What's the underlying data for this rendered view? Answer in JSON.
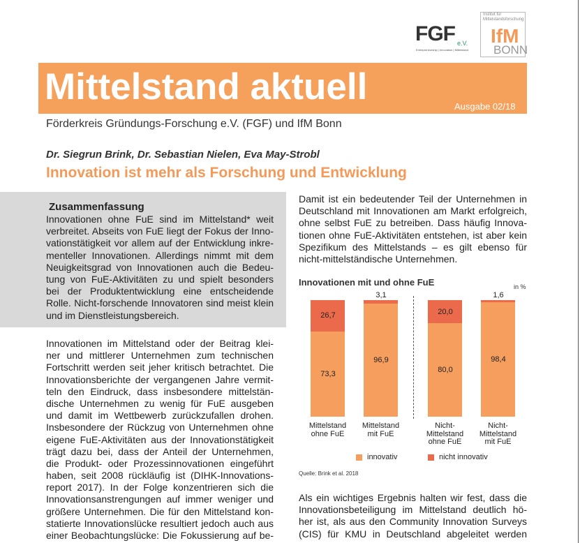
{
  "logos": {
    "fgf": "FGF",
    "fgf_suffix": "e.V.",
    "fgf_tagline": "Entrepreneurship | Innovation | Mittelstand",
    "ifm_institute": "Institut für Mittelstandsforschung",
    "ifm": "IfM",
    "ifm_city": "BONN"
  },
  "header": {
    "title": "Mittelstand aktuell",
    "issue": "Ausgabe 02/18",
    "publisher": "Förderkreis Gründungs-Forschung e.V. (FGF) und IfM Bonn",
    "authors": "Dr. Siegrun Brink, Dr. Sebastian Nielen, Eva May-Strobl",
    "headline": "Innovation ist mehr als Forschung und Entwicklung"
  },
  "summary": {
    "heading": "Zusammenfassung",
    "lines": [
      "Innovationen ohne FuE sind im Mittelstand* weit",
      "verbreitet. Abseits von FuE liegt der Fokus der Inno-",
      "vationstätigkeit vor allem auf der Entwicklung inkre-",
      "menteller Innovationen. Allerdings nimmt mit dem",
      "Neuigkeitsgrad von Innovationen auch die Bedeu-",
      "tung von FuE-Aktivitäten zu und spielt besonders",
      "bei der Produktentwicklung eine entscheidende",
      "Rolle. Nicht-forschende Innovatoren sind meist klein",
      "und im Dienstleistungsbereich."
    ]
  },
  "body_left": {
    "lines": [
      "Innovationen im Mittelstand oder der Beitrag klei-",
      "ner und mittlerer Unternehmen zum technischen",
      "Fortschritt werden seit jeher kritisch betrachtet. Die",
      "Innovationsberichte der vergangenen Jahre vermit-",
      "teln den Eindruck, dass insbesondere mittelstän-",
      "dische Unternehmen zu wenig für FuE ausgeben",
      "und damit im Wettbewerb zurückzufallen drohen.",
      "Insbesondere der Rückzug von Unternehmen ohne",
      "eigene FuE-Aktivitäten aus der Innovationstätigkeit",
      "trägt dazu bei, dass der Anteil der Unternehmen,",
      "die Produkt- oder Prozessinnovationen eingeführt",
      "haben, seit 2008 rückläufig ist (DIHK-Innovations-",
      "report 2017). In der Folge konzentrieren sich die",
      "Innovationsanstrengungen auf immer weniger und",
      "größere Unternehmen. Die für den Mittelstand kon-",
      "statierte Innovationslücke resultiert jedoch auch aus",
      "einer Beobachtungslücke: Die Fokussierung auf be-"
    ]
  },
  "body_right_top": {
    "lines": [
      "Damit ist ein bedeutender Teil der Unternehmen in",
      "Deutschland mit Innovationen am Markt erfolgreich,",
      "ohne selbst FuE zu betreiben. Dass häufig Innova-",
      "tionen ohne FuE-Aktivitäten entstehen, ist aber kein",
      "Spezifikum des Mittelstands – es gilt ebenso für",
      "nicht-mittelständische Unternehmen."
    ]
  },
  "body_right_bottom": {
    "lines": [
      "Als ein wichtiges Ergebnis halten wir fest, dass die",
      "Innovationsbeteiligung im Mittelstand deutlich hö-",
      "her ist, als aus den Community Innovation Surveys",
      "(CIS) für KMU in Deutschland abgeleitet werden"
    ]
  },
  "chart_data": {
    "type": "bar",
    "stacked": true,
    "title": "Innovationen mit und ohne FuE",
    "unit_label": "in %",
    "categories": [
      "Mittelstand\nohne FuE",
      "Mittelstand\nmit FuE",
      "Nicht-\nMittelstand\nohne FuE",
      "Nicht-\nMittelstand\nmit FuE"
    ],
    "series": [
      {
        "name": "innovativ",
        "color": "#f59e5e",
        "values": [
          73.3,
          96.9,
          80.0,
          98.4
        ],
        "value_labels": [
          "73,3",
          "96,9",
          "80,0",
          "98,4"
        ]
      },
      {
        "name": "nicht innovativ",
        "color": "#ea6a4b",
        "values": [
          26.7,
          3.1,
          20.0,
          1.6
        ],
        "value_labels": [
          "26,7",
          "3,1",
          "20,0",
          "1,6"
        ]
      }
    ],
    "ylim": [
      0,
      100
    ],
    "source": "Quelle: Brink et al. 2018"
  }
}
